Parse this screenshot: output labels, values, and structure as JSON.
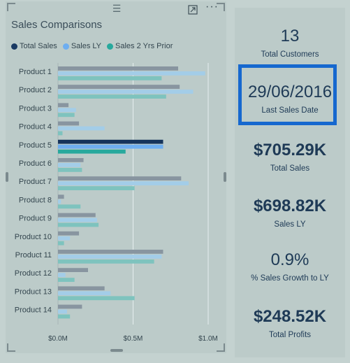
{
  "chart_panel": {
    "title": "Sales Comparisons",
    "legend": [
      {
        "label": "Total Sales",
        "color": "#1a3a63"
      },
      {
        "label": "Sales LY",
        "color": "#6eaef0"
      },
      {
        "label": "Sales 2 Yrs Prior",
        "color": "#27a99d"
      }
    ],
    "handle_glyph": "☰",
    "more_glyph": "···"
  },
  "chart_data": {
    "type": "bar",
    "orientation": "horizontal",
    "title": "Sales Comparisons",
    "categories": [
      "Product 1",
      "Product 2",
      "Product 3",
      "Product 4",
      "Product 5",
      "Product 6",
      "Product 7",
      "Product 8",
      "Product 9",
      "Product 10",
      "Product 11",
      "Product 12",
      "Product 13",
      "Product 14"
    ],
    "series": [
      {
        "name": "Total Sales",
        "color": "#8895a0",
        "highlight_color": "#15335b",
        "values": [
          0.8,
          0.81,
          0.07,
          0.14,
          0.7,
          0.17,
          0.82,
          0.04,
          0.25,
          0.14,
          0.7,
          0.2,
          0.31,
          0.16
        ]
      },
      {
        "name": "Sales LY",
        "color": "#a3cde8",
        "highlight_color": "#6eaef0",
        "values": [
          0.98,
          0.9,
          0.12,
          0.31,
          0.7,
          0.15,
          0.87,
          0.02,
          0.26,
          0.08,
          0.69,
          0.05,
          0.35,
          0.06
        ]
      },
      {
        "name": "Sales 2 Yrs Prior",
        "color": "#7ec3be",
        "highlight_color": "#27a99d",
        "values": [
          0.69,
          0.72,
          0.11,
          0.03,
          0.45,
          0.16,
          0.51,
          0.15,
          0.27,
          0.04,
          0.64,
          0.11,
          0.51,
          0.08
        ]
      }
    ],
    "highlighted_category": "Product 5",
    "xlim": [
      0,
      1.0
    ],
    "xticks": [
      {
        "value": 0,
        "label": "$0.0M"
      },
      {
        "value": 0.5,
        "label": "$0.5M"
      },
      {
        "value": 1.0,
        "label": "$1.0M"
      }
    ],
    "grid": true
  },
  "cards": [
    {
      "value": "13",
      "label": "Total Customers",
      "bold": false
    },
    {
      "value": "29/06/2016",
      "label": "Last Sales Date",
      "bold": false
    },
    {
      "value": "$705.29K",
      "label": "Total Sales",
      "bold": true
    },
    {
      "value": "$698.82K",
      "label": "Sales LY",
      "bold": true
    },
    {
      "value": "0.9%",
      "label": "% Sales Growth to LY",
      "bold": false
    },
    {
      "value": "$248.52K",
      "label": "Total Profits",
      "bold": true
    }
  ],
  "highlight_color": "#1668cf"
}
